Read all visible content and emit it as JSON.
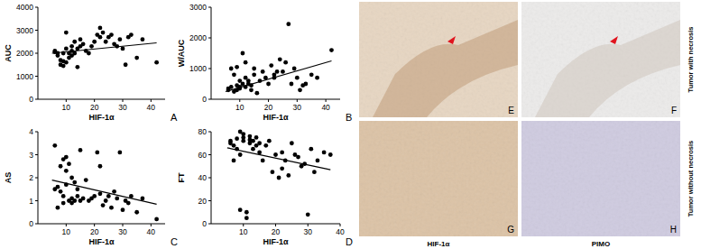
{
  "chart_data": [
    {
      "type": "scatter",
      "x_label": "HIF-1α",
      "y_label": "AUC",
      "annotations": [
        "A"
      ],
      "xlim": [
        0,
        45
      ],
      "xticks": [
        10,
        20,
        30,
        40
      ],
      "ylim": [
        0,
        4000
      ],
      "yticks": [
        0,
        1000,
        2000,
        3000,
        4000
      ],
      "series": [
        {
          "type": "scatter",
          "marker": "circle",
          "color": "#000000",
          "x": [
            6,
            6,
            7,
            7,
            8,
            8,
            9,
            9,
            9,
            10,
            10,
            10,
            11,
            11,
            12,
            12,
            12,
            13,
            13,
            14,
            14,
            15,
            15,
            16,
            17,
            18,
            19,
            20,
            21,
            22,
            22,
            23,
            24,
            25,
            26,
            27,
            28,
            29,
            30,
            31,
            32,
            33,
            35,
            37,
            42
          ],
          "values": [
            2100,
            2050,
            1900,
            2000,
            1700,
            1500,
            2000,
            1450,
            1650,
            2200,
            2900,
            1600,
            1800,
            2000,
            2100,
            1900,
            2300,
            2000,
            2500,
            2200,
            1400,
            2600,
            2300,
            2400,
            2100,
            2000,
            2300,
            2500,
            2800,
            3100,
            2700,
            2900,
            2500,
            2700,
            2800,
            2400,
            2300,
            2600,
            2200,
            1500,
            2700,
            2800,
            1800,
            2600,
            1600
          ]
        },
        {
          "type": "line",
          "line_style": "solid",
          "color": "#000000",
          "x": [
            5,
            42
          ],
          "values": [
            2000,
            2450
          ]
        }
      ]
    },
    {
      "type": "scatter",
      "x_label": "HIF-1α",
      "y_label": "W/AUC",
      "annotations": [
        "B"
      ],
      "xlim": [
        0,
        45
      ],
      "xticks": [
        10,
        20,
        30,
        40
      ],
      "ylim": [
        0,
        3000
      ],
      "yticks": [
        0,
        1000,
        2000,
        3000
      ],
      "series": [
        {
          "type": "scatter",
          "marker": "circle",
          "color": "#000000",
          "x": [
            6,
            6,
            7,
            7,
            8,
            8,
            9,
            9,
            9,
            10,
            10,
            10,
            11,
            11,
            12,
            12,
            12,
            13,
            13,
            14,
            14,
            15,
            15,
            16,
            17,
            18,
            19,
            20,
            21,
            22,
            22,
            23,
            24,
            25,
            26,
            27,
            28,
            29,
            30,
            31,
            32,
            33,
            35,
            37,
            42
          ],
          "values": [
            300,
            350,
            1000,
            400,
            250,
            800,
            450,
            300,
            1050,
            350,
            600,
            400,
            500,
            1500,
            700,
            1200,
            400,
            600,
            500,
            450,
            300,
            800,
            1000,
            200,
            600,
            900,
            700,
            500,
            1100,
            700,
            800,
            900,
            1300,
            900,
            1200,
            2450,
            500,
            1000,
            700,
            300,
            450,
            500,
            800,
            700,
            1600
          ]
        },
        {
          "type": "line",
          "line_style": "solid",
          "color": "#000000",
          "x": [
            5,
            42
          ],
          "values": [
            250,
            1250
          ]
        }
      ]
    },
    {
      "type": "scatter",
      "x_label": "HIF-1α",
      "y_label": "AS",
      "annotations": [
        "C"
      ],
      "xlim": [
        0,
        45
      ],
      "xticks": [
        10,
        20,
        30,
        40
      ],
      "ylim": [
        0,
        4
      ],
      "yticks": [
        0,
        1,
        2,
        3,
        4
      ],
      "series": [
        {
          "type": "scatter",
          "marker": "circle",
          "color": "#000000",
          "x": [
            6,
            6,
            7,
            7,
            8,
            8,
            9,
            9,
            9,
            10,
            10,
            10,
            11,
            11,
            12,
            12,
            12,
            13,
            13,
            14,
            14,
            15,
            15,
            16,
            17,
            18,
            19,
            20,
            21,
            22,
            22,
            23,
            24,
            25,
            26,
            27,
            28,
            29,
            30,
            31,
            32,
            33,
            35,
            37,
            42
          ],
          "values": [
            3.4,
            1.5,
            0.7,
            1.6,
            1.4,
            2.5,
            0.9,
            1.2,
            2.8,
            1.7,
            2.3,
            2.9,
            1.0,
            2.6,
            1.1,
            0.9,
            2.0,
            1.8,
            1.0,
            1.5,
            1.2,
            1.0,
            3.2,
            1.1,
            1.9,
            1.0,
            1.1,
            1.2,
            3.1,
            2.5,
            1.3,
            0.8,
            1.0,
            1.2,
            0.7,
            1.4,
            1.1,
            3.1,
            0.6,
            1.0,
            0.9,
            1.2,
            0.5,
            1.1,
            0.2
          ]
        },
        {
          "type": "line",
          "line_style": "solid",
          "color": "#000000",
          "x": [
            5,
            42
          ],
          "values": [
            1.9,
            0.85
          ]
        }
      ]
    },
    {
      "type": "scatter",
      "x_label": "HIF-1α",
      "y_label": "FT",
      "annotations": [
        "D"
      ],
      "xlim": [
        0,
        40
      ],
      "xticks": [
        10,
        20,
        30,
        40
      ],
      "ylim": [
        0,
        80
      ],
      "yticks": [
        0,
        20,
        40,
        60,
        80
      ],
      "series": [
        {
          "type": "scatter",
          "marker": "circle",
          "color": "#000000",
          "x": [
            6,
            6,
            7,
            7,
            8,
            8,
            9,
            9,
            9,
            10,
            10,
            10,
            11,
            11,
            12,
            12,
            12,
            13,
            13,
            14,
            14,
            15,
            15,
            16,
            17,
            18,
            19,
            20,
            21,
            22,
            22,
            23,
            24,
            25,
            26,
            27,
            28,
            29,
            30,
            31,
            32,
            33,
            35,
            37
          ],
          "values": [
            70,
            72,
            55,
            68,
            74,
            65,
            80,
            60,
            12,
            75,
            78,
            72,
            5,
            10,
            70,
            73,
            76,
            65,
            72,
            68,
            75,
            62,
            70,
            55,
            68,
            72,
            45,
            60,
            40,
            48,
            62,
            55,
            42,
            70,
            60,
            58,
            50,
            52,
            8,
            65,
            45,
            55,
            62,
            60
          ]
        },
        {
          "type": "line",
          "line_style": "solid",
          "color": "#000000",
          "x": [
            5,
            37
          ],
          "values": [
            66,
            47
          ]
        }
      ]
    }
  ],
  "micrographs": {
    "panels": [
      "E",
      "F",
      "G",
      "H"
    ],
    "row_labels": [
      "Tumor with necrosis",
      "Tumor without necrosis"
    ],
    "column_labels": [
      "HIF-1α",
      "PIMO"
    ]
  }
}
